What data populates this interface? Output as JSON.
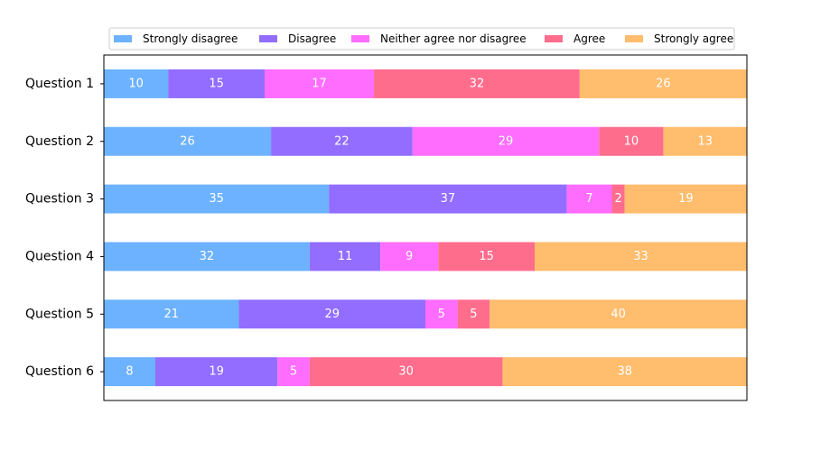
{
  "chart_data": {
    "type": "bar",
    "orientation": "horizontal",
    "stacked": true,
    "normalized_to_percent": true,
    "categories": [
      "Question 1",
      "Question 2",
      "Question 3",
      "Question 4",
      "Question 5",
      "Question 6"
    ],
    "series": [
      {
        "name": "Strongly disagree",
        "color": "#6cb2ff",
        "values": [
          10,
          26,
          35,
          32,
          21,
          8
        ]
      },
      {
        "name": "Disagree",
        "color": "#926dff",
        "values": [
          15,
          22,
          37,
          11,
          29,
          19
        ]
      },
      {
        "name": "Neither agree nor disagree",
        "color": "#ff6dff",
        "values": [
          17,
          29,
          7,
          9,
          5,
          5
        ]
      },
      {
        "name": "Agree",
        "color": "#ff6d8d",
        "values": [
          32,
          10,
          2,
          15,
          5,
          30
        ]
      },
      {
        "name": "Strongly agree",
        "color": "#ffbd6d",
        "values": [
          26,
          13,
          19,
          33,
          40,
          38
        ]
      }
    ],
    "title": "",
    "xlabel": "",
    "ylabel": "",
    "xlim": [
      0,
      100
    ],
    "x_ticks_visible": false,
    "grid": false,
    "legend": {
      "placement": "top-center",
      "ncol": 5
    },
    "bar_label_color": "#ffffff"
  }
}
